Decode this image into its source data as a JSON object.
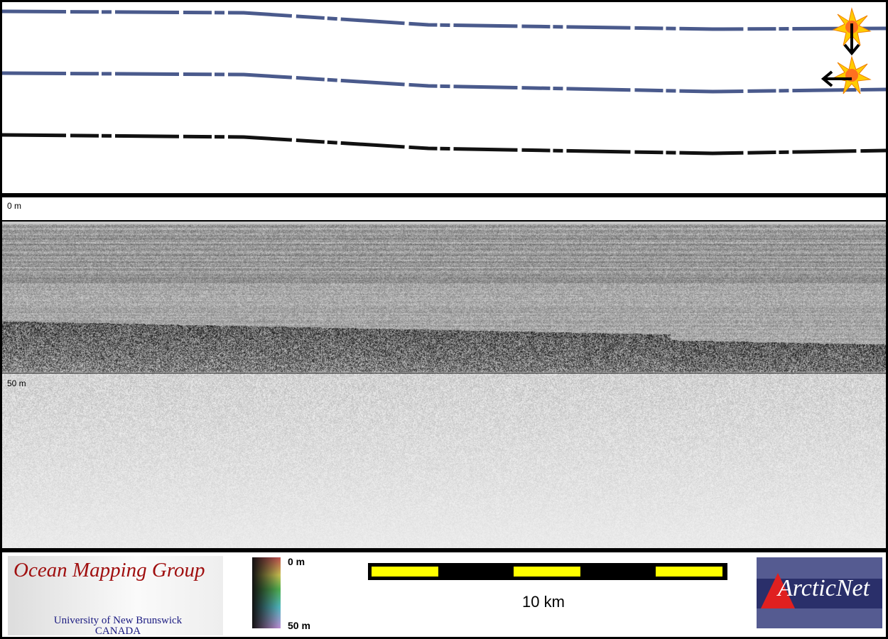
{
  "track_panel": {
    "markers": [
      "sun-marker-top",
      "sun-marker-bottom"
    ],
    "line_color": "#4a5a8c"
  },
  "depth_scale": {
    "top_label": "0 m",
    "mid_label": "50 m"
  },
  "footer": {
    "logo_left": {
      "title": "Ocean Mapping Group",
      "line1": "University of New Brunswick",
      "line2": "CANADA"
    },
    "colorbar": {
      "top": "0 m",
      "bottom": "50 m"
    },
    "scale_bar": {
      "label": "10 km",
      "colors": [
        "#ffff00",
        "#000000"
      ]
    },
    "logo_right": {
      "text": "ArcticNet"
    }
  }
}
